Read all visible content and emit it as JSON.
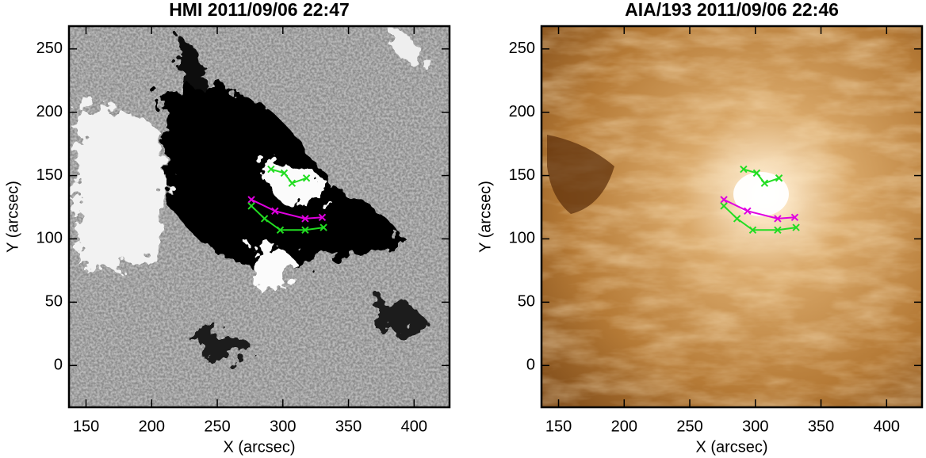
{
  "chart_data": [
    {
      "type": "image-overlay",
      "title": "HMI 2011/09/06 22:47",
      "xlabel": "X (arcsec)",
      "ylabel": "Y (arcsec)",
      "xlim": [
        137,
        427
      ],
      "ylim": [
        -33,
        268
      ],
      "xticks": [
        150,
        200,
        250,
        300,
        350,
        400
      ],
      "yticks": [
        0,
        50,
        100,
        150,
        200,
        250
      ],
      "series": [
        {
          "color": "#e000e0",
          "x": [
            276,
            294,
            317,
            330
          ],
          "values": [
            131,
            122,
            116,
            117
          ]
        },
        {
          "color": "#22dd22",
          "x": [
            276,
            286,
            298,
            317,
            331
          ],
          "values": [
            126,
            116,
            107,
            107,
            109
          ]
        },
        {
          "color": "#22dd22",
          "x": [
            291,
            301,
            307,
            318
          ],
          "values": [
            155,
            152,
            144,
            148
          ]
        }
      ]
    },
    {
      "type": "image-overlay",
      "title": "AIA/193 2011/09/06 22:46",
      "xlabel": "X (arcsec)",
      "ylabel": "Y (arcsec)",
      "xlim": [
        137,
        427
      ],
      "ylim": [
        -33,
        268
      ],
      "xticks": [
        150,
        200,
        250,
        300,
        350,
        400
      ],
      "yticks": [
        0,
        50,
        100,
        150,
        200,
        250
      ],
      "series": [
        {
          "color": "#e000e0",
          "x": [
            276,
            294,
            317,
            330
          ],
          "values": [
            131,
            122,
            116,
            117
          ]
        },
        {
          "color": "#22dd22",
          "x": [
            276,
            286,
            298,
            317,
            331
          ],
          "values": [
            126,
            116,
            107,
            107,
            109
          ]
        },
        {
          "color": "#22dd22",
          "x": [
            291,
            301,
            307,
            318
          ],
          "values": [
            155,
            152,
            144,
            148
          ]
        }
      ]
    }
  ]
}
